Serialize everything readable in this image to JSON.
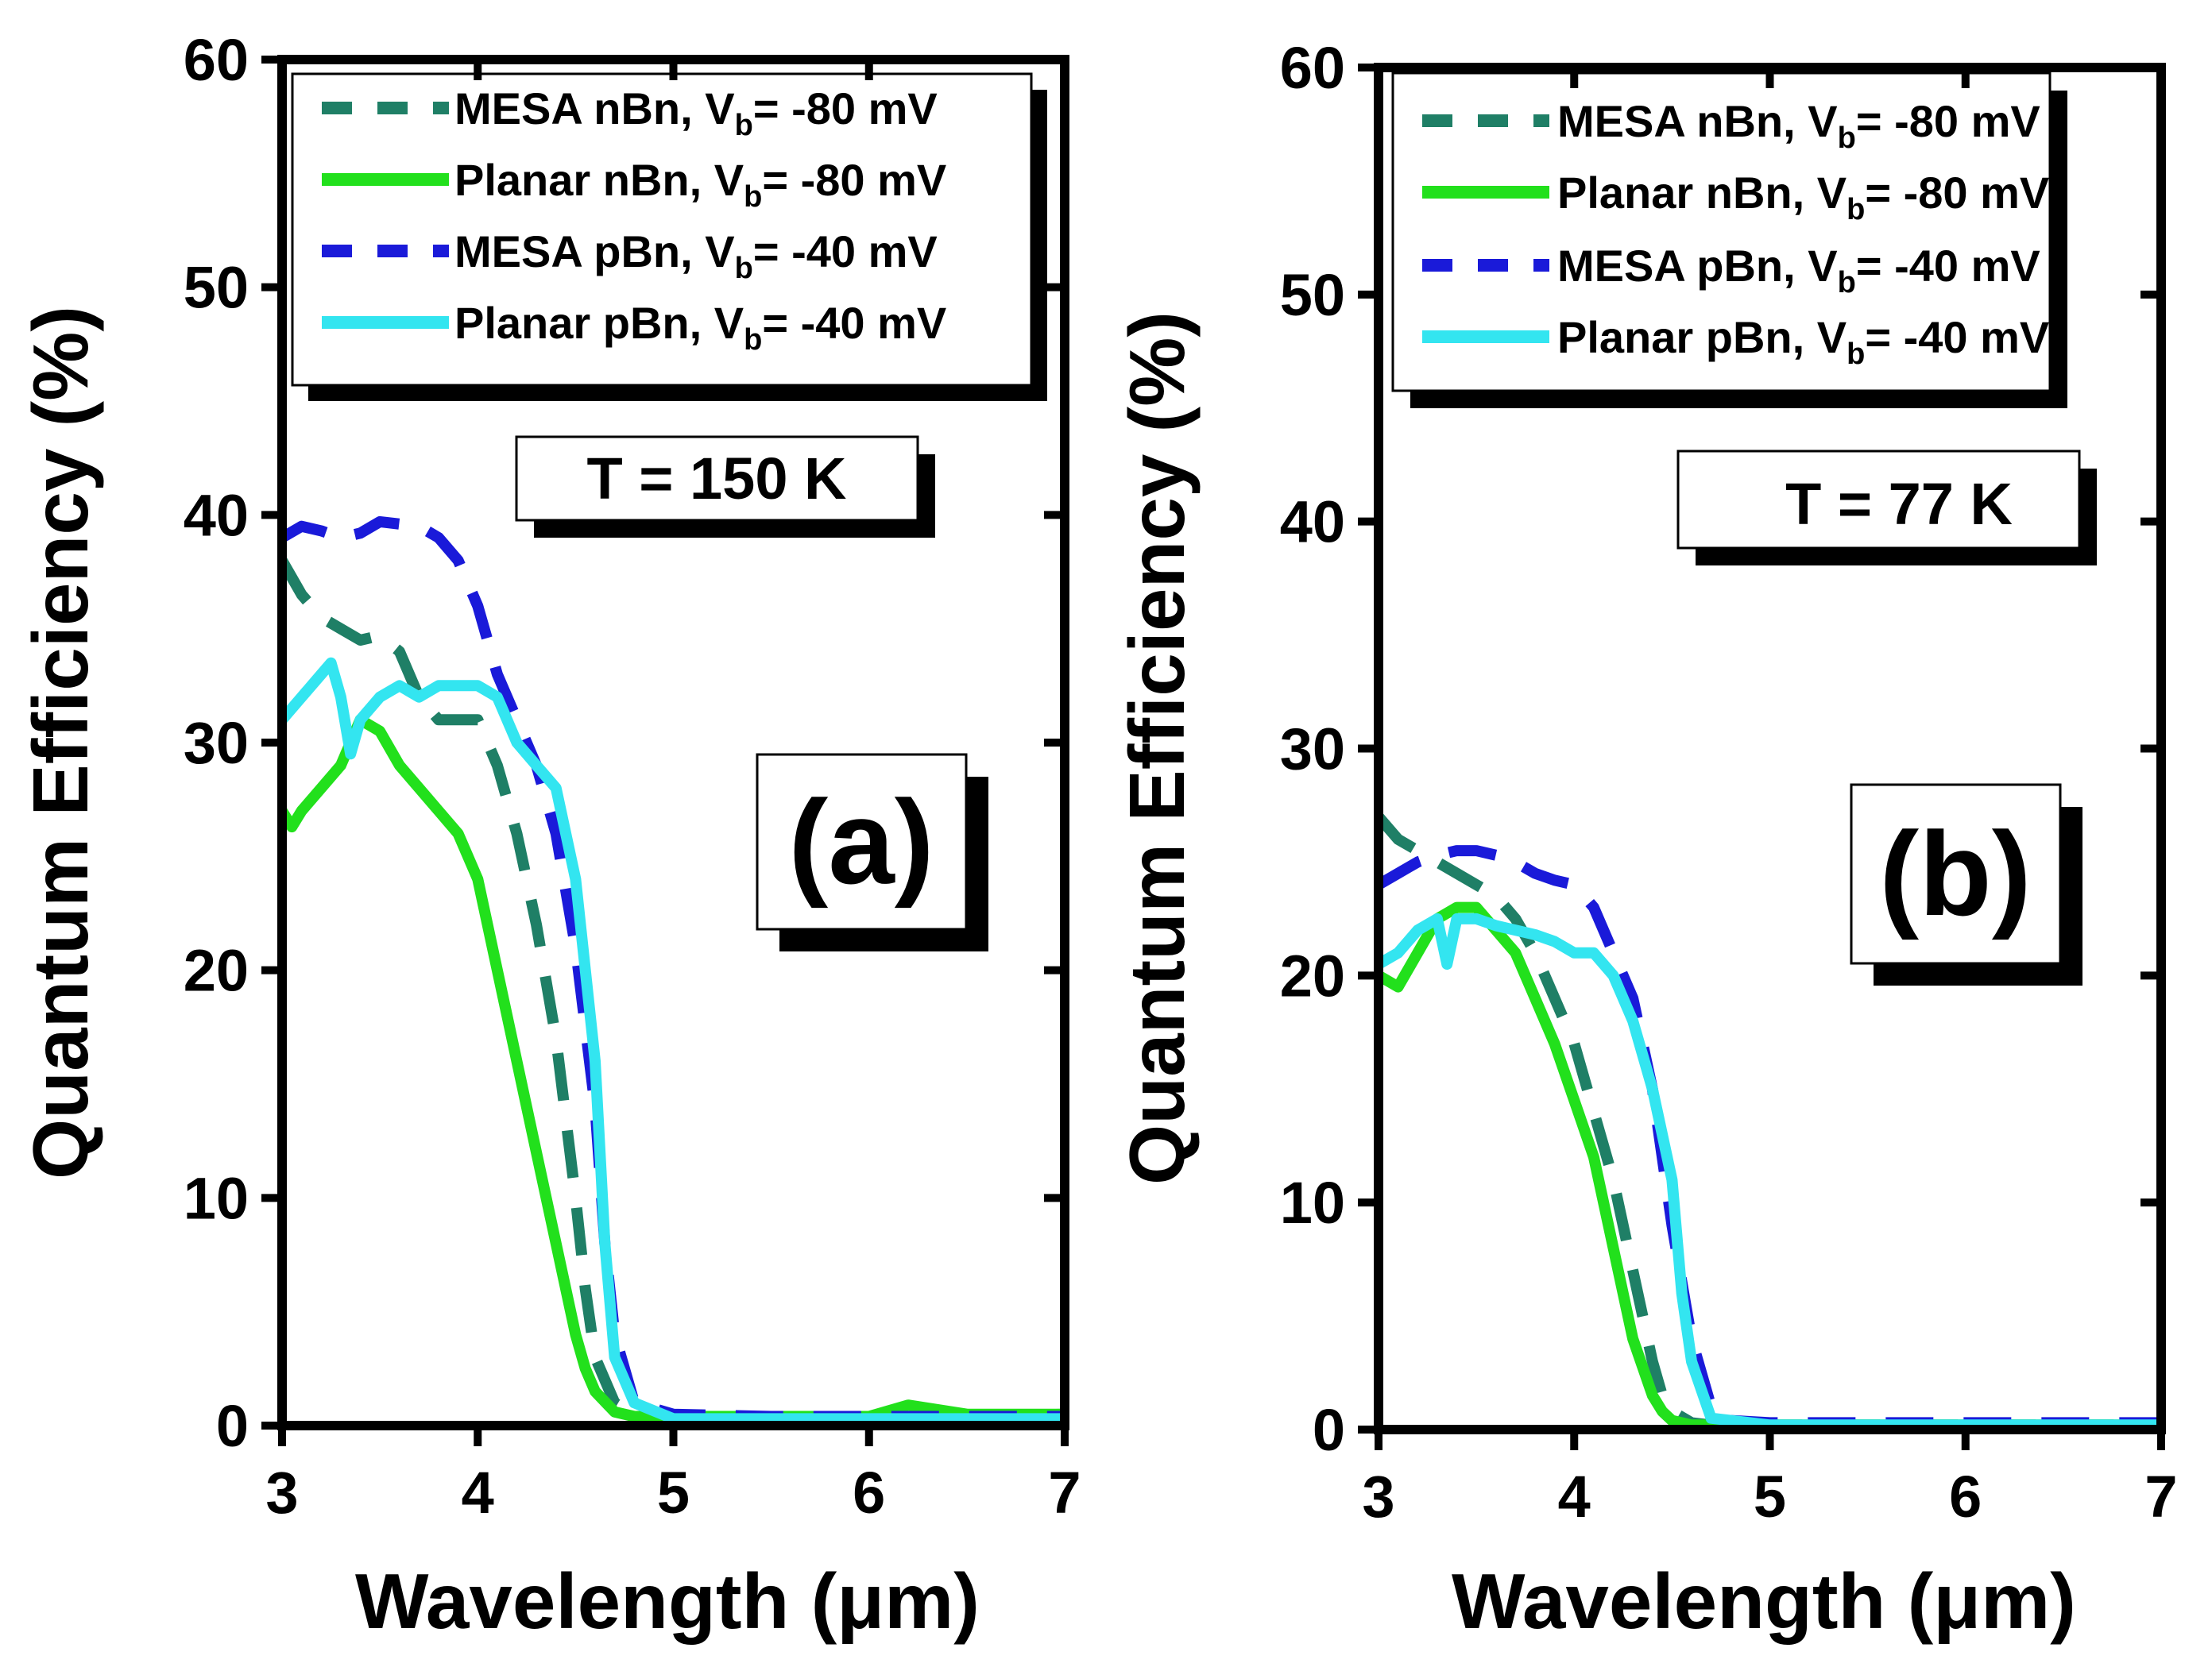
{
  "chart_data": [
    {
      "type": "line",
      "panel_label": "(a)",
      "temperature_label": "T = 150 K",
      "xlabel": "Wavelength (μm)",
      "ylabel": "Quantum Efficiency (%)",
      "xlim": [
        3,
        7
      ],
      "ylim": [
        0,
        60
      ],
      "xticks": [
        3,
        4,
        5,
        6,
        7
      ],
      "yticks": [
        0,
        10,
        20,
        30,
        40,
        50,
        60
      ],
      "legend_position": "top",
      "series": [
        {
          "name": "MESA nBn",
          "legend_prefix": "MESA nBn, V",
          "legend_sub": "b",
          "legend_suffix": "= -80 mV",
          "color": "#1f7f66",
          "dash": "dashed",
          "x": [
            3.0,
            3.1,
            3.2,
            3.3,
            3.4,
            3.5,
            3.6,
            3.7,
            3.8,
            3.9,
            4.0,
            4.1,
            4.2,
            4.3,
            4.4,
            4.5,
            4.55,
            4.6,
            4.7,
            4.8,
            5.0,
            5.5,
            6.0,
            6.5,
            7.0
          ],
          "y": [
            38,
            36.5,
            35.5,
            35,
            34.5,
            34.7,
            34,
            32,
            31,
            31,
            31,
            29,
            26,
            22,
            17,
            10,
            6,
            3,
            1,
            0.5,
            0.4,
            0.4,
            0.4,
            0.4,
            0.5
          ]
        },
        {
          "name": "Planar nBn",
          "legend_prefix": "Planar nBn, V",
          "legend_sub": "b",
          "legend_suffix": "= -80 mV",
          "color": "#22e01c",
          "dash": "solid",
          "x": [
            3.0,
            3.05,
            3.1,
            3.2,
            3.3,
            3.35,
            3.4,
            3.5,
            3.6,
            3.7,
            3.8,
            3.9,
            4.0,
            4.1,
            4.2,
            4.3,
            4.4,
            4.5,
            4.55,
            4.6,
            4.7,
            4.8,
            5.0,
            5.5,
            6.0,
            6.2,
            6.5,
            7.0
          ],
          "y": [
            27,
            26.3,
            27,
            28,
            29,
            30,
            31,
            30.5,
            29,
            28,
            27,
            26,
            24,
            20,
            16,
            12,
            8,
            4,
            2.5,
            1.5,
            0.6,
            0.4,
            0.4,
            0.4,
            0.4,
            0.9,
            0.5,
            0.5
          ]
        },
        {
          "name": "MESA pBn",
          "legend_prefix": "MESA pBn, V",
          "legend_sub": "b",
          "legend_suffix": "= -40 mV",
          "color": "#1a1ad9",
          "dash": "dashed",
          "x": [
            3.0,
            3.1,
            3.2,
            3.3,
            3.4,
            3.5,
            3.6,
            3.7,
            3.8,
            3.9,
            4.0,
            4.1,
            4.2,
            4.3,
            4.4,
            4.5,
            4.6,
            4.65,
            4.7,
            4.8,
            5.0,
            5.5,
            6.0,
            6.5,
            7.0
          ],
          "y": [
            39,
            39.5,
            39.3,
            39,
            39.2,
            39.7,
            39.6,
            39.5,
            39,
            38,
            36,
            33,
            31,
            29,
            26,
            21,
            14,
            8,
            4,
            1,
            0.5,
            0.4,
            0.4,
            0.4,
            0.4
          ]
        },
        {
          "name": "Planar pBn",
          "legend_prefix": "Planar pBn, V",
          "legend_sub": "b",
          "legend_suffix": "= -40 mV",
          "color": "#33e5f0",
          "dash": "solid",
          "x": [
            3.0,
            3.1,
            3.2,
            3.25,
            3.3,
            3.35,
            3.4,
            3.5,
            3.6,
            3.7,
            3.8,
            3.9,
            4.0,
            4.1,
            4.2,
            4.3,
            4.4,
            4.5,
            4.6,
            4.65,
            4.7,
            4.8,
            5.0,
            5.5,
            6.0,
            6.5,
            7.0
          ],
          "y": [
            31,
            32,
            33,
            33.5,
            32,
            29.5,
            31,
            32,
            32.5,
            32,
            32.5,
            32.5,
            32.5,
            32,
            30,
            29,
            28,
            24,
            16,
            8,
            3,
            1,
            0.3,
            0.3,
            0.3,
            0.3,
            0.3
          ]
        }
      ]
    },
    {
      "type": "line",
      "panel_label": "(b)",
      "temperature_label": "T = 77 K",
      "xlabel": "Wavelength (μm)",
      "ylabel": "Quantum Efficiency (%)",
      "xlim": [
        3,
        7
      ],
      "ylim": [
        0,
        60
      ],
      "xticks": [
        3,
        4,
        5,
        6,
        7
      ],
      "yticks": [
        0,
        10,
        20,
        30,
        40,
        50,
        60
      ],
      "legend_position": "top",
      "series": [
        {
          "name": "MESA nBn",
          "legend_prefix": "MESA nBn, V",
          "legend_sub": "b",
          "legend_suffix": "= -80 mV",
          "color": "#1f7f66",
          "dash": "dashed",
          "x": [
            3.0,
            3.1,
            3.2,
            3.3,
            3.4,
            3.5,
            3.6,
            3.7,
            3.8,
            3.9,
            4.0,
            4.1,
            4.2,
            4.3,
            4.4,
            4.45,
            4.5,
            4.6,
            4.7,
            5.0,
            5.5,
            6.0,
            6.5,
            7.0
          ],
          "y": [
            27,
            26,
            25.5,
            25,
            24.5,
            24,
            23.5,
            22.5,
            21,
            19,
            17,
            14,
            11,
            7,
            3,
            1.5,
            0.8,
            0.3,
            0.2,
            0.2,
            0.2,
            0.2,
            0.2,
            0.2
          ]
        },
        {
          "name": "Planar nBn",
          "legend_prefix": "Planar nBn, V",
          "legend_sub": "b",
          "legend_suffix": "= -80 mV",
          "color": "#22e01c",
          "dash": "solid",
          "x": [
            3.0,
            3.1,
            3.2,
            3.3,
            3.4,
            3.5,
            3.6,
            3.7,
            3.8,
            3.9,
            4.0,
            4.1,
            4.2,
            4.3,
            4.4,
            4.45,
            4.5,
            4.6,
            5.0,
            5.5,
            6.0,
            6.5,
            7.0
          ],
          "y": [
            20,
            19.5,
            21,
            22.5,
            23,
            23,
            22,
            21,
            19,
            17,
            14.5,
            12,
            8,
            4,
            1.5,
            0.8,
            0.4,
            0.2,
            0.2,
            0.2,
            0.2,
            0.2,
            0.2
          ]
        },
        {
          "name": "MESA pBn",
          "legend_prefix": "MESA pBn, V",
          "legend_sub": "b",
          "legend_suffix": "= -40 mV",
          "color": "#1a1ad9",
          "dash": "dashed",
          "x": [
            3.0,
            3.1,
            3.2,
            3.3,
            3.4,
            3.5,
            3.6,
            3.7,
            3.8,
            3.9,
            4.0,
            4.1,
            4.2,
            4.3,
            4.4,
            4.5,
            4.6,
            4.7,
            4.8,
            5.0,
            5.5,
            6.0,
            6.5,
            7.0
          ],
          "y": [
            24,
            24.5,
            25,
            25.3,
            25.5,
            25.5,
            25.3,
            25,
            24.5,
            24.2,
            24,
            23,
            21,
            19,
            15,
            9,
            4,
            1,
            0.4,
            0.3,
            0.3,
            0.3,
            0.3,
            0.3
          ]
        },
        {
          "name": "Planar pBn",
          "legend_prefix": "Planar pBn, V",
          "legend_sub": "b",
          "legend_suffix": "= -40 mV",
          "color": "#33e5f0",
          "dash": "solid",
          "x": [
            3.0,
            3.1,
            3.2,
            3.3,
            3.35,
            3.4,
            3.5,
            3.6,
            3.7,
            3.8,
            3.9,
            4.0,
            4.1,
            4.2,
            4.3,
            4.4,
            4.5,
            4.55,
            4.6,
            4.7,
            5.0,
            5.5,
            6.0,
            6.5,
            7.0
          ],
          "y": [
            20.5,
            21,
            22,
            22.5,
            20.5,
            22.5,
            22.5,
            22.2,
            22,
            21.8,
            21.5,
            21,
            21,
            20,
            18,
            15,
            11,
            6,
            3,
            0.5,
            0.2,
            0.2,
            0.2,
            0.2,
            0.2
          ]
        }
      ]
    }
  ]
}
